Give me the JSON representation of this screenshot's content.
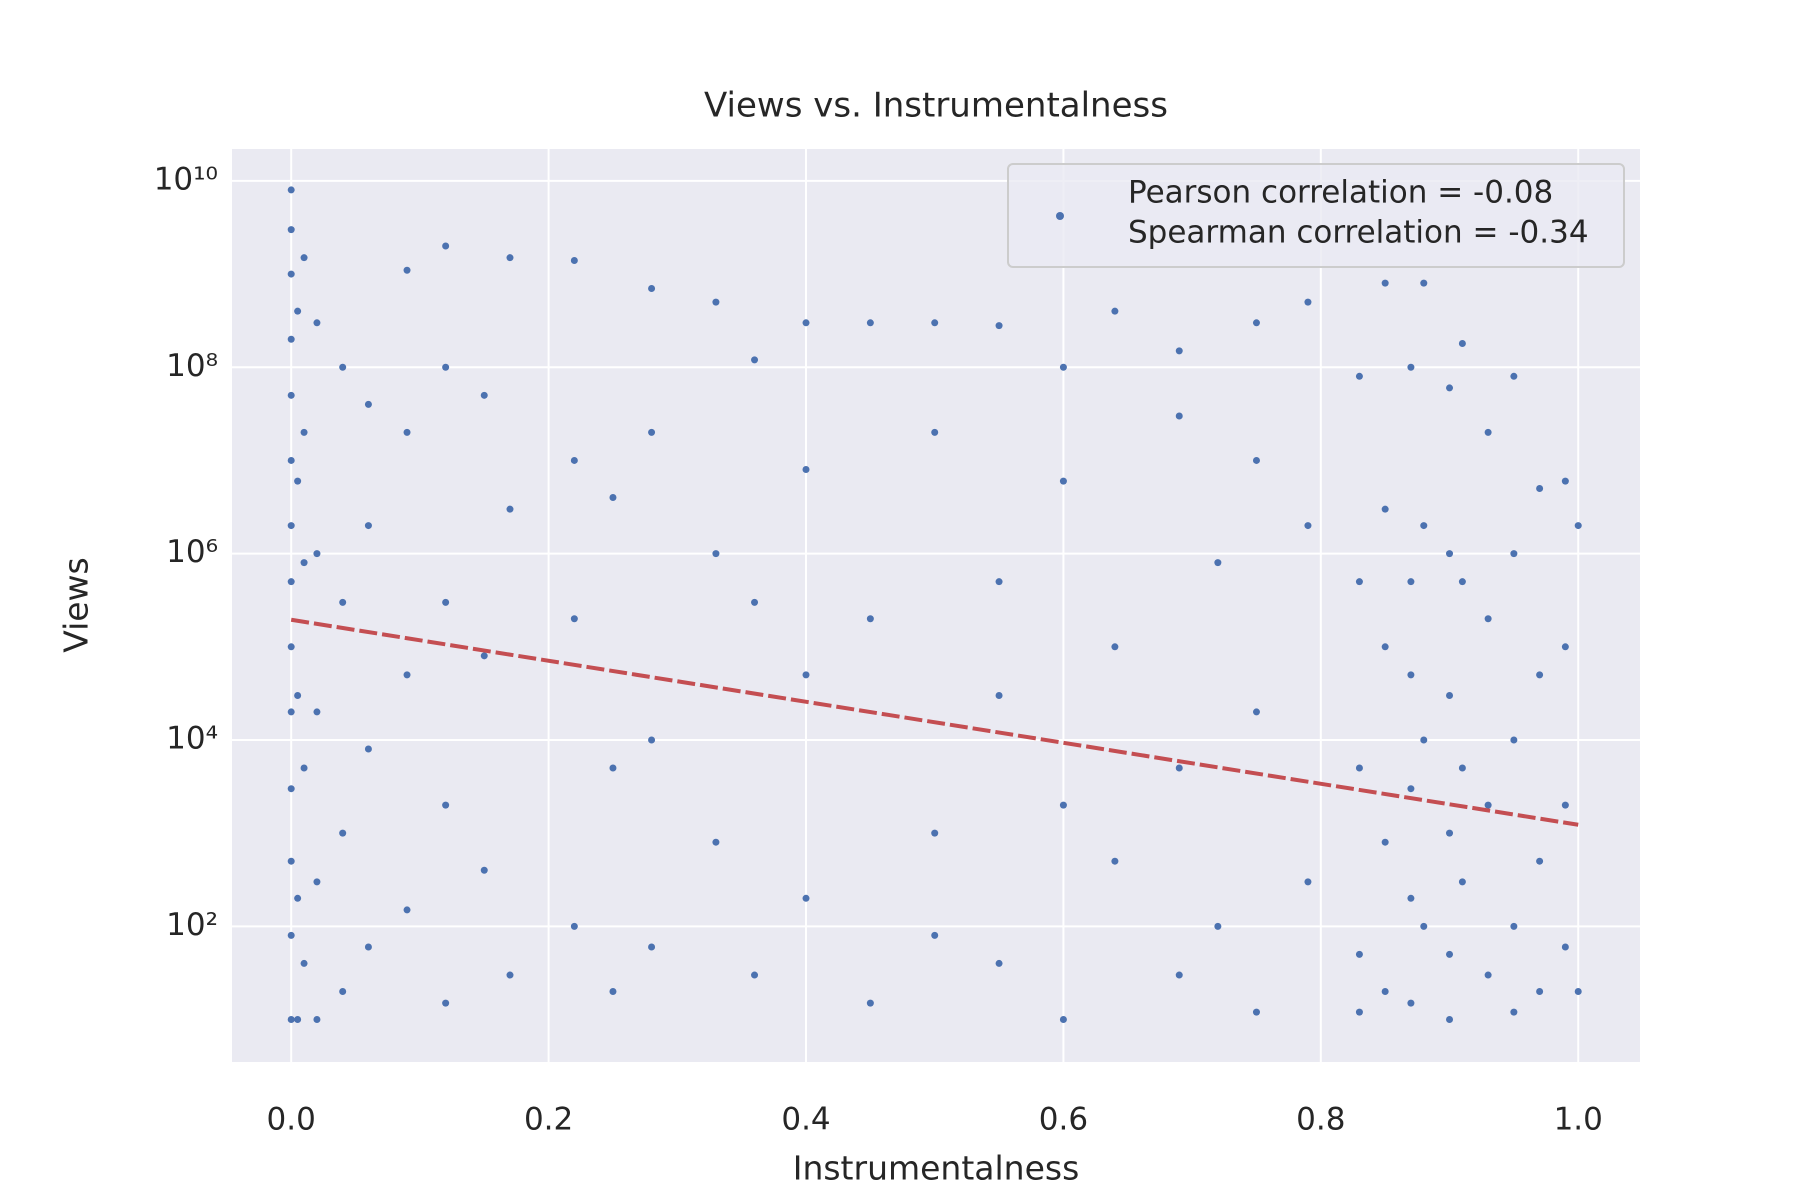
{
  "chart_data": {
    "type": "scatter",
    "title": "Views vs. Instrumentalness",
    "x_label": "Instrumentalness",
    "y_label": "Views",
    "xlim": [
      -0.046,
      1.048
    ],
    "ylim": [
      3.5,
      22000000000
    ],
    "y_scale": "log",
    "grid": true,
    "xticks": [
      {
        "value": 0,
        "label": "0.0"
      },
      0.2,
      0.4,
      0.6,
      0.8,
      {
        "value": 1,
        "label": "1.0"
      }
    ],
    "yticks": [
      {
        "value": 100,
        "label": "10²"
      },
      {
        "value": 10000,
        "label": "10⁴"
      },
      {
        "value": 1000000,
        "label": "10⁶"
      },
      {
        "value": 100000000,
        "label": "10⁸"
      },
      {
        "value": 10000000000,
        "label": "10¹⁰"
      }
    ],
    "legend": [
      "Pearson correlation = -0.08",
      "Spearman correlation = -0.34"
    ],
    "legend_position": "upper right",
    "series": [
      {
        "color": "#4c72b0",
        "x": [
          0,
          0,
          0,
          0,
          0,
          0,
          0,
          0,
          0,
          0,
          0,
          0,
          0,
          0,
          0.005,
          0.005,
          0.005,
          0.005,
          0.005,
          0.01,
          0.01,
          0.01,
          0.01,
          0.01,
          0.02,
          0.02,
          0.02,
          0.02,
          0.02,
          0.04,
          0.04,
          0.04,
          0.04,
          0.06,
          0.06,
          0.06,
          0.06,
          0.09,
          0.09,
          0.09,
          0.09,
          0.12,
          0.12,
          0.12,
          0.12,
          0.12,
          0.15,
          0.15,
          0.15,
          0.17,
          0.17,
          0.17,
          0.22,
          0.22,
          0.22,
          0.22,
          0.25,
          0.25,
          0.25,
          0.28,
          0.28,
          0.28,
          0.28,
          0.33,
          0.33,
          0.33,
          0.36,
          0.36,
          0.36,
          0.4,
          0.4,
          0.4,
          0.4,
          0.45,
          0.45,
          0.45,
          0.5,
          0.5,
          0.5,
          0.5,
          0.55,
          0.55,
          0.55,
          0.55,
          0.6,
          0.6,
          0.6,
          0.6,
          0.64,
          0.64,
          0.64,
          0.69,
          0.69,
          0.69,
          0.69,
          0.72,
          0.72,
          0.75,
          0.75,
          0.75,
          0.75,
          0.79,
          0.79,
          0.79,
          0.83,
          0.83,
          0.83,
          0.83,
          0.83,
          0.85,
          0.85,
          0.85,
          0.85,
          0.85,
          0.87,
          0.87,
          0.87,
          0.87,
          0.87,
          0.87,
          0.88,
          0.88,
          0.88,
          0.88,
          0.9,
          0.9,
          0.9,
          0.9,
          0.9,
          0.9,
          0.91,
          0.91,
          0.91,
          0.91,
          0.93,
          0.93,
          0.93,
          0.93,
          0.95,
          0.95,
          0.95,
          0.95,
          0.95,
          0.97,
          0.97,
          0.97,
          0.97,
          0.99,
          0.99,
          0.99,
          0.99,
          1,
          1
        ],
        "values": [
          8000000000.0,
          3000000000.0,
          1000000000.0,
          200000000.0,
          50000000.0,
          10000000.0,
          2000000.0,
          500000.0,
          100000.0,
          20000.0,
          3000.0,
          500,
          80,
          10,
          400000000.0,
          6000000.0,
          30000.0,
          200,
          10,
          1500000000.0,
          20000000.0,
          800000.0,
          5000.0,
          40,
          300000000.0,
          1000000.0,
          20000.0,
          300,
          10,
          100000000.0,
          300000.0,
          1000.0,
          20,
          40000000.0,
          2000000.0,
          8000.0,
          60,
          1100000000.0,
          20000000.0,
          50000.0,
          150,
          2000000000.0,
          100000000.0,
          300000.0,
          2000.0,
          15,
          50000000.0,
          80000.0,
          400,
          1500000000.0,
          3000000.0,
          30,
          1400000000.0,
          10000000.0,
          200000.0,
          100,
          4000000.0,
          5000.0,
          20,
          700000000.0,
          20000000.0,
          10000.0,
          60,
          500000000.0,
          1000000.0,
          800,
          120000000.0,
          300000.0,
          30,
          300000000.0,
          8000000.0,
          50000.0,
          200,
          300000000.0,
          200000.0,
          15,
          300000000.0,
          20000000.0,
          1000.0,
          80,
          280000000.0,
          500000.0,
          30000.0,
          40,
          100000000.0,
          6000000.0,
          2000.0,
          10,
          400000000.0,
          100000.0,
          500,
          150000000.0,
          30000000.0,
          5000.0,
          30,
          800000.0,
          100,
          300000000.0,
          10000000.0,
          20000.0,
          12,
          500000000.0,
          2000000.0,
          300,
          80000000.0,
          500000.0,
          5000.0,
          50,
          12,
          800000000.0,
          3000000.0,
          100000.0,
          800,
          20,
          100000000.0,
          500000.0,
          50000.0,
          3000.0,
          200,
          15,
          800000000.0,
          2000000.0,
          10000.0,
          100,
          60000000.0,
          1000000.0,
          30000.0,
          1000.0,
          50,
          10,
          180000000.0,
          500000.0,
          5000.0,
          300,
          20000000.0,
          200000.0,
          2000.0,
          30,
          80000000.0,
          1000000.0,
          10000.0,
          100,
          12,
          5000000.0,
          50000.0,
          500,
          20,
          6000000.0,
          100000.0,
          2000.0,
          60,
          2000000.0,
          20
        ]
      }
    ],
    "trend": {
      "x": [
        0,
        1
      ],
      "values": [
        195000,
        1230
      ],
      "color": "#c44e52",
      "style": "dashed"
    }
  }
}
